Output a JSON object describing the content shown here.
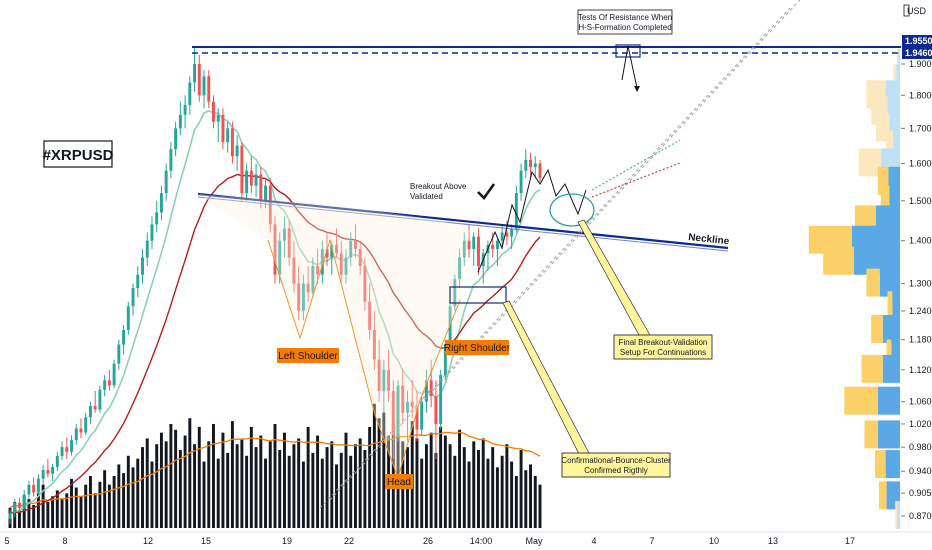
{
  "chart_data": {
    "type": "candlestick",
    "symbol": "#XRPUSD",
    "currency": "USD",
    "ylim": [
      0.84,
      2.02
    ],
    "y_scale": "log",
    "y_ticks": [
      "1.9000",
      "1.8000",
      "1.7000",
      "1.6000",
      "1.5000",
      "1.4000",
      "1.3000",
      "1.2400",
      "1.1800",
      "1.1200",
      "1.0600",
      "1.0200",
      "0.9800",
      "0.9400",
      "0.9050",
      "0.8700"
    ],
    "y_tick_values": [
      1.9,
      1.8,
      1.7,
      1.6,
      1.5,
      1.4,
      1.3,
      1.24,
      1.18,
      1.12,
      1.06,
      1.02,
      0.98,
      0.94,
      0.905,
      0.87
    ],
    "x_ticks": [
      "5",
      "8",
      "12",
      "15",
      "19",
      "22",
      "26",
      "14:00",
      "May",
      "4",
      "7",
      "10",
      "13",
      "17"
    ],
    "resistance_levels": [
      {
        "label": "1.9550",
        "value": 1.955,
        "color": "#0d2a8c"
      },
      {
        "label": "1.9460",
        "value": 1.946,
        "color": "#0d2a8c"
      }
    ],
    "candles": [
      [
        0.866,
        0.88,
        0.858,
        0.874
      ],
      [
        0.874,
        0.896,
        0.868,
        0.89
      ],
      [
        0.89,
        0.898,
        0.876,
        0.882
      ],
      [
        0.882,
        0.91,
        0.878,
        0.903
      ],
      [
        0.903,
        0.925,
        0.895,
        0.918
      ],
      [
        0.918,
        0.93,
        0.9,
        0.906
      ],
      [
        0.906,
        0.935,
        0.902,
        0.928
      ],
      [
        0.928,
        0.95,
        0.918,
        0.942
      ],
      [
        0.942,
        0.96,
        0.93,
        0.936
      ],
      [
        0.936,
        0.952,
        0.924,
        0.947
      ],
      [
        0.947,
        0.972,
        0.94,
        0.965
      ],
      [
        0.965,
        0.99,
        0.958,
        0.98
      ],
      [
        0.98,
        0.996,
        0.96,
        0.972
      ],
      [
        0.972,
        1.0,
        0.966,
        0.992
      ],
      [
        0.992,
        1.02,
        0.984,
        1.012
      ],
      [
        1.012,
        1.03,
        0.995,
        1.005
      ],
      [
        1.005,
        1.04,
        1.0,
        1.032
      ],
      [
        1.032,
        1.06,
        1.02,
        1.052
      ],
      [
        1.052,
        1.08,
        1.04,
        1.046
      ],
      [
        1.046,
        1.09,
        1.04,
        1.082
      ],
      [
        1.082,
        1.11,
        1.07,
        1.1
      ],
      [
        1.1,
        1.12,
        1.08,
        1.09
      ],
      [
        1.09,
        1.14,
        1.085,
        1.132
      ],
      [
        1.132,
        1.18,
        1.12,
        1.17
      ],
      [
        1.17,
        1.21,
        1.15,
        1.2
      ],
      [
        1.2,
        1.26,
        1.19,
        1.25
      ],
      [
        1.25,
        1.3,
        1.23,
        1.29
      ],
      [
        1.29,
        1.34,
        1.27,
        1.32
      ],
      [
        1.32,
        1.38,
        1.3,
        1.36
      ],
      [
        1.36,
        1.42,
        1.34,
        1.4
      ],
      [
        1.4,
        1.46,
        1.38,
        1.44
      ],
      [
        1.44,
        1.5,
        1.42,
        1.47
      ],
      [
        1.47,
        1.54,
        1.45,
        1.52
      ],
      [
        1.52,
        1.6,
        1.5,
        1.58
      ],
      [
        1.58,
        1.66,
        1.56,
        1.64
      ],
      [
        1.64,
        1.72,
        1.62,
        1.7
      ],
      [
        1.7,
        1.78,
        1.68,
        1.74
      ],
      [
        1.74,
        1.8,
        1.7,
        1.77
      ],
      [
        1.77,
        1.86,
        1.74,
        1.84
      ],
      [
        1.84,
        1.96,
        1.81,
        1.9
      ],
      [
        1.9,
        1.93,
        1.78,
        1.8
      ],
      [
        1.8,
        1.88,
        1.76,
        1.86
      ],
      [
        1.86,
        1.88,
        1.76,
        1.78
      ],
      [
        1.78,
        1.8,
        1.7,
        1.72
      ],
      [
        1.72,
        1.76,
        1.66,
        1.74
      ],
      [
        1.74,
        1.76,
        1.64,
        1.66
      ],
      [
        1.66,
        1.72,
        1.63,
        1.7
      ],
      [
        1.7,
        1.72,
        1.6,
        1.62
      ],
      [
        1.62,
        1.68,
        1.58,
        1.65
      ],
      [
        1.65,
        1.66,
        1.5,
        1.52
      ],
      [
        1.52,
        1.6,
        1.5,
        1.58
      ],
      [
        1.58,
        1.62,
        1.52,
        1.54
      ],
      [
        1.54,
        1.6,
        1.51,
        1.57
      ],
      [
        1.57,
        1.59,
        1.48,
        1.5
      ],
      [
        1.5,
        1.56,
        1.48,
        1.54
      ],
      [
        1.54,
        1.56,
        1.42,
        1.44
      ],
      [
        1.44,
        1.46,
        1.3,
        1.32
      ],
      [
        1.32,
        1.42,
        1.3,
        1.4
      ],
      [
        1.4,
        1.46,
        1.36,
        1.43
      ],
      [
        1.43,
        1.45,
        1.34,
        1.36
      ],
      [
        1.36,
        1.4,
        1.28,
        1.3
      ],
      [
        1.3,
        1.34,
        1.22,
        1.24
      ],
      [
        1.24,
        1.32,
        1.22,
        1.3
      ],
      [
        1.3,
        1.34,
        1.26,
        1.28
      ],
      [
        1.28,
        1.36,
        1.27,
        1.34
      ],
      [
        1.34,
        1.38,
        1.3,
        1.32
      ],
      [
        1.32,
        1.4,
        1.3,
        1.38
      ],
      [
        1.38,
        1.42,
        1.34,
        1.36
      ],
      [
        1.36,
        1.4,
        1.32,
        1.39
      ],
      [
        1.39,
        1.43,
        1.36,
        1.37
      ],
      [
        1.37,
        1.4,
        1.3,
        1.32
      ],
      [
        1.32,
        1.38,
        1.3,
        1.36
      ],
      [
        1.36,
        1.42,
        1.34,
        1.4
      ],
      [
        1.4,
        1.44,
        1.36,
        1.38
      ],
      [
        1.38,
        1.4,
        1.32,
        1.34
      ],
      [
        1.34,
        1.36,
        1.24,
        1.26
      ],
      [
        1.26,
        1.3,
        1.18,
        1.2
      ],
      [
        1.2,
        1.24,
        1.12,
        1.14
      ],
      [
        1.14,
        1.18,
        1.06,
        1.08
      ],
      [
        1.08,
        1.14,
        1.04,
        1.12
      ],
      [
        1.12,
        1.16,
        1.06,
        1.08
      ],
      [
        1.08,
        1.1,
        0.96,
        1.0
      ],
      [
        1.0,
        1.1,
        0.99,
        1.09
      ],
      [
        1.09,
        1.12,
        1.02,
        1.04
      ],
      [
        1.04,
        1.08,
        0.99,
        1.06
      ],
      [
        1.06,
        1.1,
        1.03,
        1.05
      ],
      [
        1.05,
        1.08,
        0.99,
        1.01
      ],
      [
        1.01,
        1.07,
        1.0,
        1.06
      ],
      [
        1.06,
        1.12,
        1.04,
        1.1
      ],
      [
        1.1,
        1.14,
        1.05,
        1.07
      ],
      [
        1.07,
        1.1,
        0.96,
        1.02
      ],
      [
        1.02,
        1.12,
        1.01,
        1.11
      ],
      [
        1.11,
        1.18,
        1.1,
        1.17
      ],
      [
        1.17,
        1.26,
        1.16,
        1.25
      ],
      [
        1.25,
        1.32,
        1.24,
        1.31
      ],
      [
        1.31,
        1.38,
        1.29,
        1.36
      ],
      [
        1.36,
        1.42,
        1.34,
        1.4
      ],
      [
        1.4,
        1.44,
        1.36,
        1.38
      ],
      [
        1.38,
        1.42,
        1.34,
        1.41
      ],
      [
        1.41,
        1.43,
        1.32,
        1.34
      ],
      [
        1.34,
        1.38,
        1.3,
        1.37
      ],
      [
        1.37,
        1.4,
        1.33,
        1.39
      ],
      [
        1.39,
        1.42,
        1.36,
        1.38
      ],
      [
        1.38,
        1.41,
        1.34,
        1.4
      ],
      [
        1.4,
        1.44,
        1.38,
        1.42
      ],
      [
        1.42,
        1.45,
        1.39,
        1.41
      ],
      [
        1.41,
        1.44,
        1.38,
        1.43
      ],
      [
        1.43,
        1.54,
        1.42,
        1.52
      ],
      [
        1.52,
        1.6,
        1.5,
        1.58
      ],
      [
        1.58,
        1.64,
        1.56,
        1.61
      ],
      [
        1.61,
        1.63,
        1.56,
        1.59
      ],
      [
        1.59,
        1.62,
        1.56,
        1.6
      ],
      [
        1.6,
        1.61,
        1.55,
        1.56
      ]
    ],
    "volume": [
      14,
      18,
      12,
      22,
      20,
      16,
      24,
      30,
      18,
      22,
      26,
      20,
      24,
      34,
      28,
      22,
      30,
      36,
      24,
      32,
      40,
      30,
      36,
      44,
      38,
      50,
      42,
      48,
      56,
      62,
      46,
      58,
      66,
      60,
      72,
      68,
      54,
      64,
      76,
      58,
      70,
      46,
      60,
      72,
      48,
      66,
      52,
      74,
      58,
      62,
      50,
      70,
      56,
      64,
      48,
      60,
      72,
      54,
      66,
      50,
      58,
      62,
      46,
      70,
      52,
      64,
      48,
      56,
      60,
      44,
      52,
      66,
      50,
      58,
      62,
      54,
      70,
      86,
      76,
      80,
      64,
      72,
      90,
      60,
      56,
      74,
      62,
      48,
      58,
      66,
      52,
      70,
      64,
      58,
      50,
      68,
      56,
      46,
      60,
      54,
      62,
      48,
      56,
      42,
      50,
      58,
      46,
      36,
      54,
      40,
      44,
      36,
      30,
      26
    ],
    "volume_profile": [
      {
        "price": 1.9,
        "total": 6,
        "up": 4
      },
      {
        "price": 1.85,
        "total": 14,
        "up": 8
      },
      {
        "price": 1.8,
        "total": 70,
        "up": 30
      },
      {
        "price": 1.75,
        "total": 60,
        "up": 26
      },
      {
        "price": 1.7,
        "total": 50,
        "up": 22
      },
      {
        "price": 1.65,
        "total": 30,
        "up": 14
      },
      {
        "price": 1.6,
        "total": 86,
        "up": 40
      },
      {
        "price": 1.55,
        "total": 46,
        "up": 24
      },
      {
        "price": 1.5,
        "total": 40,
        "up": 22
      },
      {
        "price": 1.45,
        "total": 94,
        "up": 50
      },
      {
        "price": 1.4,
        "total": 190,
        "up": 100
      },
      {
        "price": 1.35,
        "total": 160,
        "up": 96
      },
      {
        "price": 1.3,
        "total": 70,
        "up": 42
      },
      {
        "price": 1.25,
        "total": 26,
        "up": 16
      },
      {
        "price": 1.2,
        "total": 60,
        "up": 36
      },
      {
        "price": 1.15,
        "total": 28,
        "up": 18
      },
      {
        "price": 1.12,
        "total": 80,
        "up": 36
      },
      {
        "price": 1.06,
        "total": 116,
        "up": 46
      },
      {
        "price": 1.0,
        "total": 74,
        "up": 46
      },
      {
        "price": 0.95,
        "total": 52,
        "up": 30
      },
      {
        "price": 0.9,
        "total": 44,
        "up": 28
      },
      {
        "price": 0.87,
        "total": 10,
        "up": 6
      }
    ],
    "annotations": {
      "breakout": "Breakout Above Validated",
      "neckline": "Neckline",
      "left_shoulder": "Left Shoulder",
      "head": "Head",
      "right_shoulder": "Right Shoulder",
      "resistance_tests": "Tests Of Resistance When H-S-Formation Completed",
      "final_breakout": "Final Breakout-Validation Setup For Continuations",
      "bounce_cluster": "Confirmational-Bounce-Cluster Confirmed Rigthly"
    },
    "colors": {
      "up": "#26a69a",
      "down": "#ef5350",
      "neckline": "#0d2a8c",
      "resistance": "#0d2a8c",
      "ema_fast": "#8fcfb6",
      "ema_slow": "#b71c1c",
      "volume": "#131722",
      "volume_ma": "#f57c00",
      "pattern_orange": "#f57c00",
      "profile_up": "#5aa8e6",
      "profile_up_light": "#bfe0f7",
      "profile_down": "#fbd069",
      "profile_down_light": "#fde7bf"
    }
  }
}
